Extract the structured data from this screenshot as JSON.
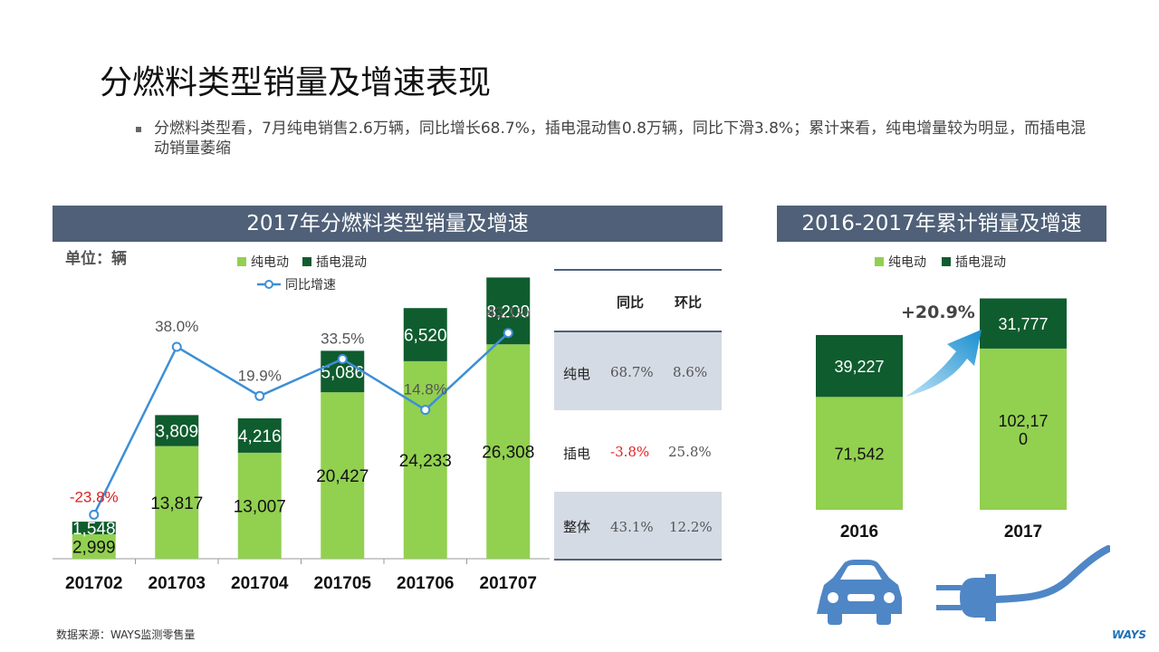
{
  "page": {
    "title": "分燃料类型销量及增速表现",
    "bullet": "分燃料类型看，7月纯电销售2.6万辆，同比增长68.7%，插电混动售0.8万辆，同比下滑3.8%；累计来看，纯电增量较为明显，而插电混动销量萎缩",
    "source": "数据来源：WAYS监测零售量",
    "brand": "WAYS"
  },
  "left_panel": {
    "title": "2017年分燃料类型销量及增速",
    "unit": "单位：辆",
    "legend": {
      "pure": "纯电动",
      "hybrid": "插电混动",
      "growth": "同比增速"
    }
  },
  "table": {
    "headers": [
      "同比",
      "环比"
    ],
    "rows": [
      {
        "label": "纯电",
        "yoy": "68.7%",
        "mom": "8.6%"
      },
      {
        "label": "插电",
        "yoy": "-3.8%",
        "mom": "25.8%"
      },
      {
        "label": "整体",
        "yoy": "43.1%",
        "mom": "12.2%"
      }
    ]
  },
  "right_panel": {
    "title": "2016-2017年累计销量及增速",
    "legend": {
      "pure": "纯电动",
      "hybrid": "插电混动"
    },
    "growth_label": "+20.9%"
  },
  "colors": {
    "pure": "#92d050",
    "hybrid": "#0f5c2e",
    "line": "#3d8fd6",
    "negative": "#e02020",
    "header": "#4f6078"
  },
  "chart_data": [
    {
      "type": "bar",
      "stacked": true,
      "categories": [
        "201702",
        "201703",
        "201704",
        "201705",
        "201706",
        "201707"
      ],
      "series": [
        {
          "name": "纯电动",
          "values": [
            2999,
            13817,
            13007,
            20427,
            24233,
            26308
          ],
          "labels": [
            "2,999",
            "13,817",
            "13,007",
            "20,427",
            "24,233",
            "26,308"
          ]
        },
        {
          "name": "插电混动",
          "values": [
            1548,
            3809,
            4216,
            5086,
            6520,
            8200
          ],
          "labels": [
            "1,548",
            "3,809",
            "4,216",
            "5,086",
            "6,520",
            "8,200"
          ]
        }
      ],
      "line": {
        "name": "同比增速",
        "values": [
          -23.8,
          38.0,
          19.9,
          33.5,
          14.8,
          43.1
        ],
        "labels": [
          "-23.8%",
          "38.0%",
          "19.9%",
          "33.5%",
          "14.8%",
          "43.1%"
        ]
      },
      "ylim": [
        0,
        40000
      ],
      "line_ylim": [
        -40,
        80
      ]
    },
    {
      "type": "bar",
      "stacked": true,
      "categories": [
        "2016",
        "2017"
      ],
      "series": [
        {
          "name": "纯电动",
          "values": [
            71542,
            102170
          ],
          "labels": [
            "71,542",
            "102,17\n0"
          ]
        },
        {
          "name": "插电混动",
          "values": [
            39227,
            31777
          ],
          "labels": [
            "39,227",
            "31,777"
          ]
        }
      ],
      "ylim": [
        0,
        140000
      ]
    }
  ]
}
